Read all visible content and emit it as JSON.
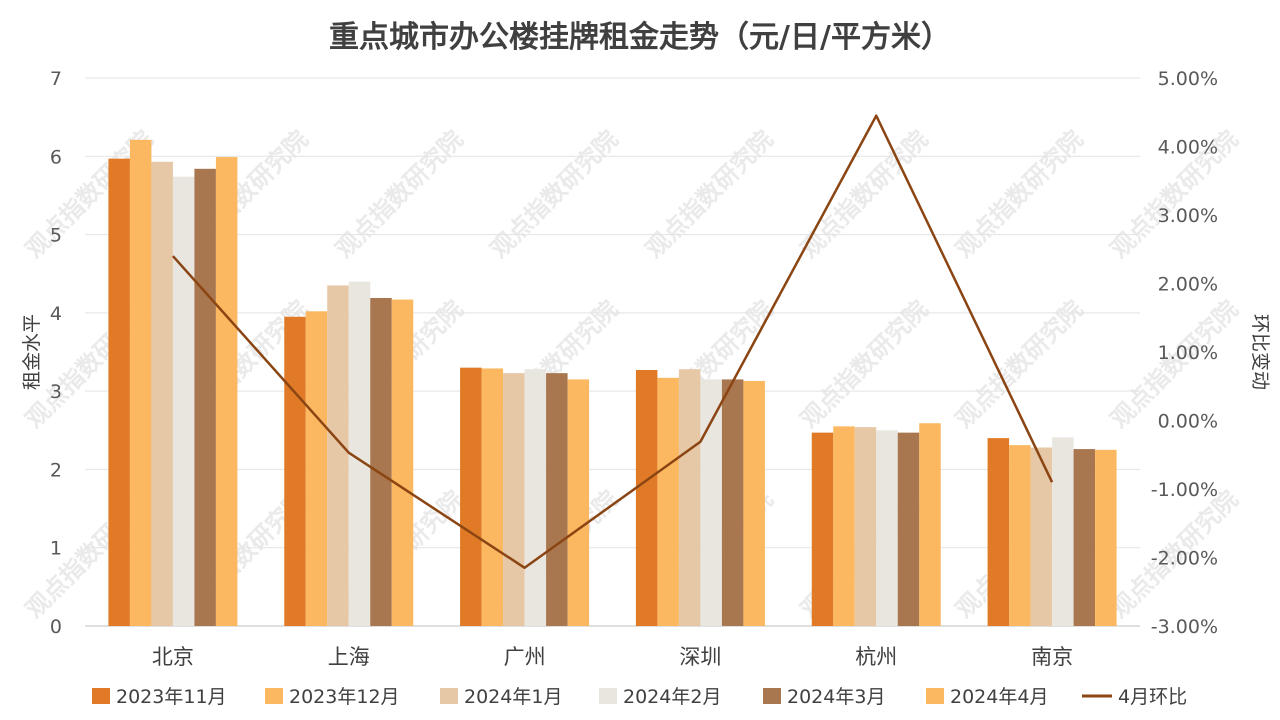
{
  "chart_data": {
    "type": "bar",
    "title": "重点城市办公楼挂牌租金走势（元/日/平方米）",
    "categories": [
      "北京",
      "上海",
      "广州",
      "深圳",
      "杭州",
      "南京"
    ],
    "ylabel": "租金水平",
    "y2label": "环比变动",
    "ylim": [
      0,
      7
    ],
    "y2lim": [
      -3.0,
      5.0
    ],
    "y_ticks": [
      "0",
      "1",
      "2",
      "3",
      "4",
      "5",
      "6",
      "7"
    ],
    "y2_ticks": [
      "-3.00%",
      "-2.00%",
      "-1.00%",
      "0.00%",
      "1.00%",
      "2.00%",
      "3.00%",
      "4.00%",
      "5.00%"
    ],
    "grid": true,
    "legend_position": "bottom",
    "watermark": "观点指数研究院",
    "series": [
      {
        "name": "2023年11月",
        "color": "#e07a26",
        "values": [
          5.97,
          3.95,
          3.3,
          3.27,
          2.47,
          2.4
        ]
      },
      {
        "name": "2023年12月",
        "color": "#fbb860",
        "values": [
          6.21,
          4.02,
          3.29,
          3.17,
          2.55,
          2.31
        ]
      },
      {
        "name": "2024年1月",
        "color": "#e6c7a6",
        "values": [
          5.93,
          4.35,
          3.23,
          3.28,
          2.54,
          2.28
        ]
      },
      {
        "name": "2024年2月",
        "color": "#e8e6df",
        "values": [
          5.74,
          4.4,
          3.28,
          3.15,
          2.5,
          2.41
        ]
      },
      {
        "name": "2024年3月",
        "color": "#a8774f",
        "values": [
          5.84,
          4.19,
          3.23,
          3.15,
          2.47,
          2.26
        ]
      },
      {
        "name": "2024年4月",
        "color": "#fbb860",
        "values": [
          5.99,
          4.17,
          3.15,
          3.13,
          2.59,
          2.25
        ]
      }
    ],
    "line_series": {
      "name": "4月环比",
      "color": "#8b4513",
      "axis": "right",
      "values": [
        2.4,
        -0.47,
        -2.15,
        -0.31,
        4.45,
        -0.9
      ]
    }
  }
}
